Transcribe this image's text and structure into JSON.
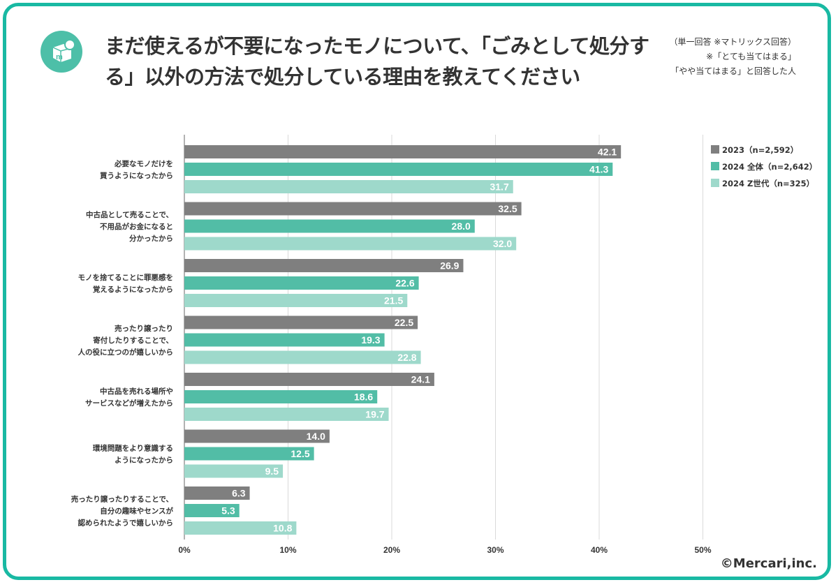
{
  "header": {
    "title": "まだ使えるが不要になったモノについて、「ごみとして処分する」以外の方法で処分している理由を教えてください",
    "notes": [
      "（単一回答 ※マトリックス回答）",
      "※「とても当てはまる」",
      "「やや当てはまる」と回答した人"
    ]
  },
  "colors": {
    "frame": "#19b9a3",
    "logo": "#4dbfa8",
    "series": [
      "#7f7f7f",
      "#52bda6",
      "#9ed9cb"
    ],
    "grid": "#d9d9d9",
    "axis": "#999999"
  },
  "icons": {
    "logo": "mercari-box-logo"
  },
  "chart_data": {
    "type": "bar",
    "orientation": "horizontal",
    "categories": [
      [
        "必要なモノだけを",
        "買うようになったから"
      ],
      [
        "中古品として売ることで、",
        "不用品がお金になると",
        "分かったから"
      ],
      [
        "モノを捨てることに罪悪感を",
        "覚えるようになったから"
      ],
      [
        "売ったり譲ったり",
        "寄付したりすることで、",
        "人の役に立つのが嬉しいから"
      ],
      [
        "中古品を売れる場所や",
        "サービスなどが増えたから"
      ],
      [
        "環境問題をより意識する",
        "ようになったから"
      ],
      [
        "売ったり譲ったりすることで、",
        "自分の趣味やセンスが",
        "認められたようで嬉しいから"
      ]
    ],
    "series": [
      {
        "name": "2023（n=2,592）",
        "values": [
          42.1,
          32.5,
          26.9,
          22.5,
          24.1,
          14.0,
          6.3
        ]
      },
      {
        "name": "2024 全体（n=2,642）",
        "values": [
          41.3,
          28.0,
          22.6,
          19.3,
          18.6,
          12.5,
          5.3
        ]
      },
      {
        "name": "2024 Z世代（n=325）",
        "values": [
          31.7,
          32.0,
          21.5,
          22.8,
          19.7,
          9.5,
          10.8
        ]
      }
    ],
    "xlim": [
      0,
      50
    ],
    "xticks": [
      "0%",
      "10%",
      "20%",
      "30%",
      "40%",
      "50%"
    ],
    "grid": true,
    "legend": "top-right"
  },
  "footer": {
    "credit": "©Mercari,inc."
  }
}
